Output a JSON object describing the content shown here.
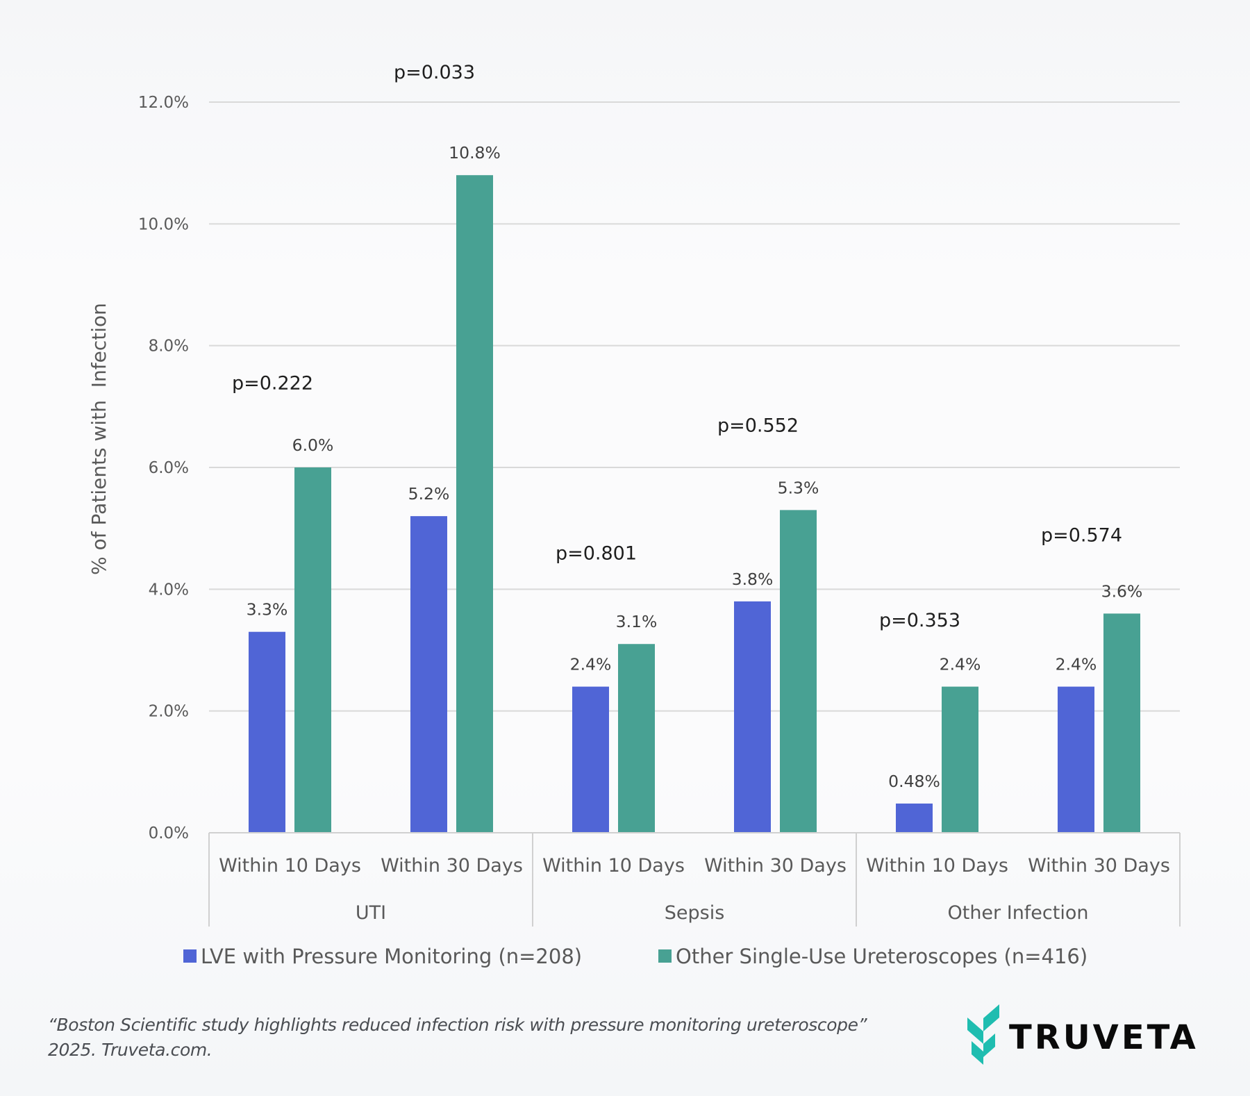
{
  "colors": {
    "series_1": "#5065D6",
    "series_2": "#48A193",
    "gridline": "#d9d9d9",
    "axis": "#d0d0d0",
    "logo_teal": "#1FBDB0"
  },
  "chart_data": {
    "type": "bar",
    "title": "",
    "ylabel": "% of Patients with  Infection",
    "xlabel": "",
    "ylim": [
      0,
      12
    ],
    "yticks": [
      0,
      2,
      4,
      6,
      8,
      10,
      12
    ],
    "ytick_labels": [
      "0.0%",
      "2.0%",
      "4.0%",
      "6.0%",
      "8.0%",
      "10.0%",
      "12.0%"
    ],
    "grid": true,
    "legend_position": "bottom",
    "groups": [
      "UTI",
      "Sepsis",
      "Other Infection"
    ],
    "categories": [
      "Within 10 Days",
      "Within 30 Days",
      "Within 10 Days",
      "Within 30 Days",
      "Within 10 Days",
      "Within 30 Days"
    ],
    "series": [
      {
        "name": "LVE with Pressure Monitoring (n=208)",
        "values": [
          3.3,
          5.2,
          2.4,
          3.8,
          0.48,
          2.4
        ],
        "labels": [
          "3.3%",
          "5.2%",
          "2.4%",
          "3.8%",
          "0.48%",
          "2.4%"
        ]
      },
      {
        "name": "Other Single-Use Ureteroscopes (n=416)",
        "values": [
          6.0,
          10.8,
          3.1,
          5.3,
          2.4,
          3.6
        ],
        "labels": [
          "6.0%",
          "10.8%",
          "3.1%",
          "5.3%",
          "2.4%",
          "3.6%"
        ]
      }
    ],
    "annotations": [
      {
        "text": "p=0.222",
        "category_index": 0,
        "y_value": 7.4
      },
      {
        "text": "p=0.033",
        "category_index": 1,
        "y_value": 12.5
      },
      {
        "text": "p=0.801",
        "category_index": 2,
        "y_value": 4.6
      },
      {
        "text": "p=0.552",
        "category_index": 3,
        "y_value": 6.7
      },
      {
        "text": "p=0.353",
        "category_index": 4,
        "y_value": 3.5
      },
      {
        "text": "p=0.574",
        "category_index": 5,
        "y_value": 4.9
      }
    ]
  },
  "footer": {
    "line1": "“Boston Scientific study highlights reduced infection risk with pressure monitoring ureteroscope”",
    "line2": "2025. Truveta.com."
  },
  "logo": {
    "text": "TRUVETA",
    "icon": "truveta-leaf-icon"
  }
}
